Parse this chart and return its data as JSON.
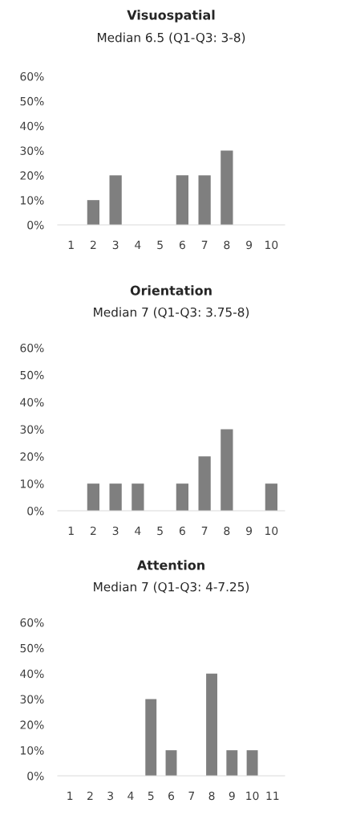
{
  "chart_data": [
    {
      "type": "bar",
      "title": "Visuospatial",
      "subtitle": "Median 6.5 (Q1-Q3: 3-8)",
      "categories": [
        "1",
        "2",
        "3",
        "4",
        "5",
        "6",
        "7",
        "8",
        "9",
        "10"
      ],
      "values": [
        0,
        10,
        20,
        0,
        0,
        20,
        20,
        30,
        0,
        0
      ],
      "color": "#7f7f7f",
      "ylim": [
        0,
        60
      ],
      "yticks": [
        {
          "value": 0,
          "label": "0%"
        },
        {
          "value": 10,
          "label": "10%"
        },
        {
          "value": 20,
          "label": "20%"
        },
        {
          "value": 30,
          "label": "30%"
        },
        {
          "value": 40,
          "label": "40%"
        },
        {
          "value": 50,
          "label": "50%"
        },
        {
          "value": 60,
          "label": "60%"
        }
      ],
      "grid": false
    },
    {
      "type": "bar",
      "title": "Orientation",
      "subtitle": "Median 7 (Q1-Q3: 3.75-8)",
      "categories": [
        "1",
        "2",
        "3",
        "4",
        "5",
        "6",
        "7",
        "8",
        "9",
        "10"
      ],
      "values": [
        0,
        10,
        10,
        10,
        0,
        10,
        20,
        30,
        0,
        10
      ],
      "color": "#7f7f7f",
      "ylim": [
        0,
        60
      ],
      "yticks": [
        {
          "value": 0,
          "label": "0%"
        },
        {
          "value": 10,
          "label": "10%"
        },
        {
          "value": 20,
          "label": "20%"
        },
        {
          "value": 30,
          "label": "30%"
        },
        {
          "value": 40,
          "label": "40%"
        },
        {
          "value": 50,
          "label": "50%"
        },
        {
          "value": 60,
          "label": "60%"
        }
      ],
      "grid": false
    },
    {
      "type": "bar",
      "title": "Attention",
      "subtitle": "Median 7 (Q1-Q3: 4-7.25)",
      "categories": [
        "1",
        "2",
        "3",
        "4",
        "5",
        "6",
        "7",
        "8",
        "9",
        "10",
        "11"
      ],
      "values": [
        0,
        0,
        0,
        0,
        30,
        10,
        0,
        40,
        10,
        10,
        0
      ],
      "color": "#7f7f7f",
      "ylim": [
        0,
        60
      ],
      "yticks": [
        {
          "value": 0,
          "label": "0%"
        },
        {
          "value": 10,
          "label": "10%"
        },
        {
          "value": 20,
          "label": "20%"
        },
        {
          "value": 30,
          "label": "30%"
        },
        {
          "value": 40,
          "label": "40%"
        },
        {
          "value": 50,
          "label": "50%"
        },
        {
          "value": 60,
          "label": "60%"
        }
      ],
      "grid": false
    }
  ]
}
